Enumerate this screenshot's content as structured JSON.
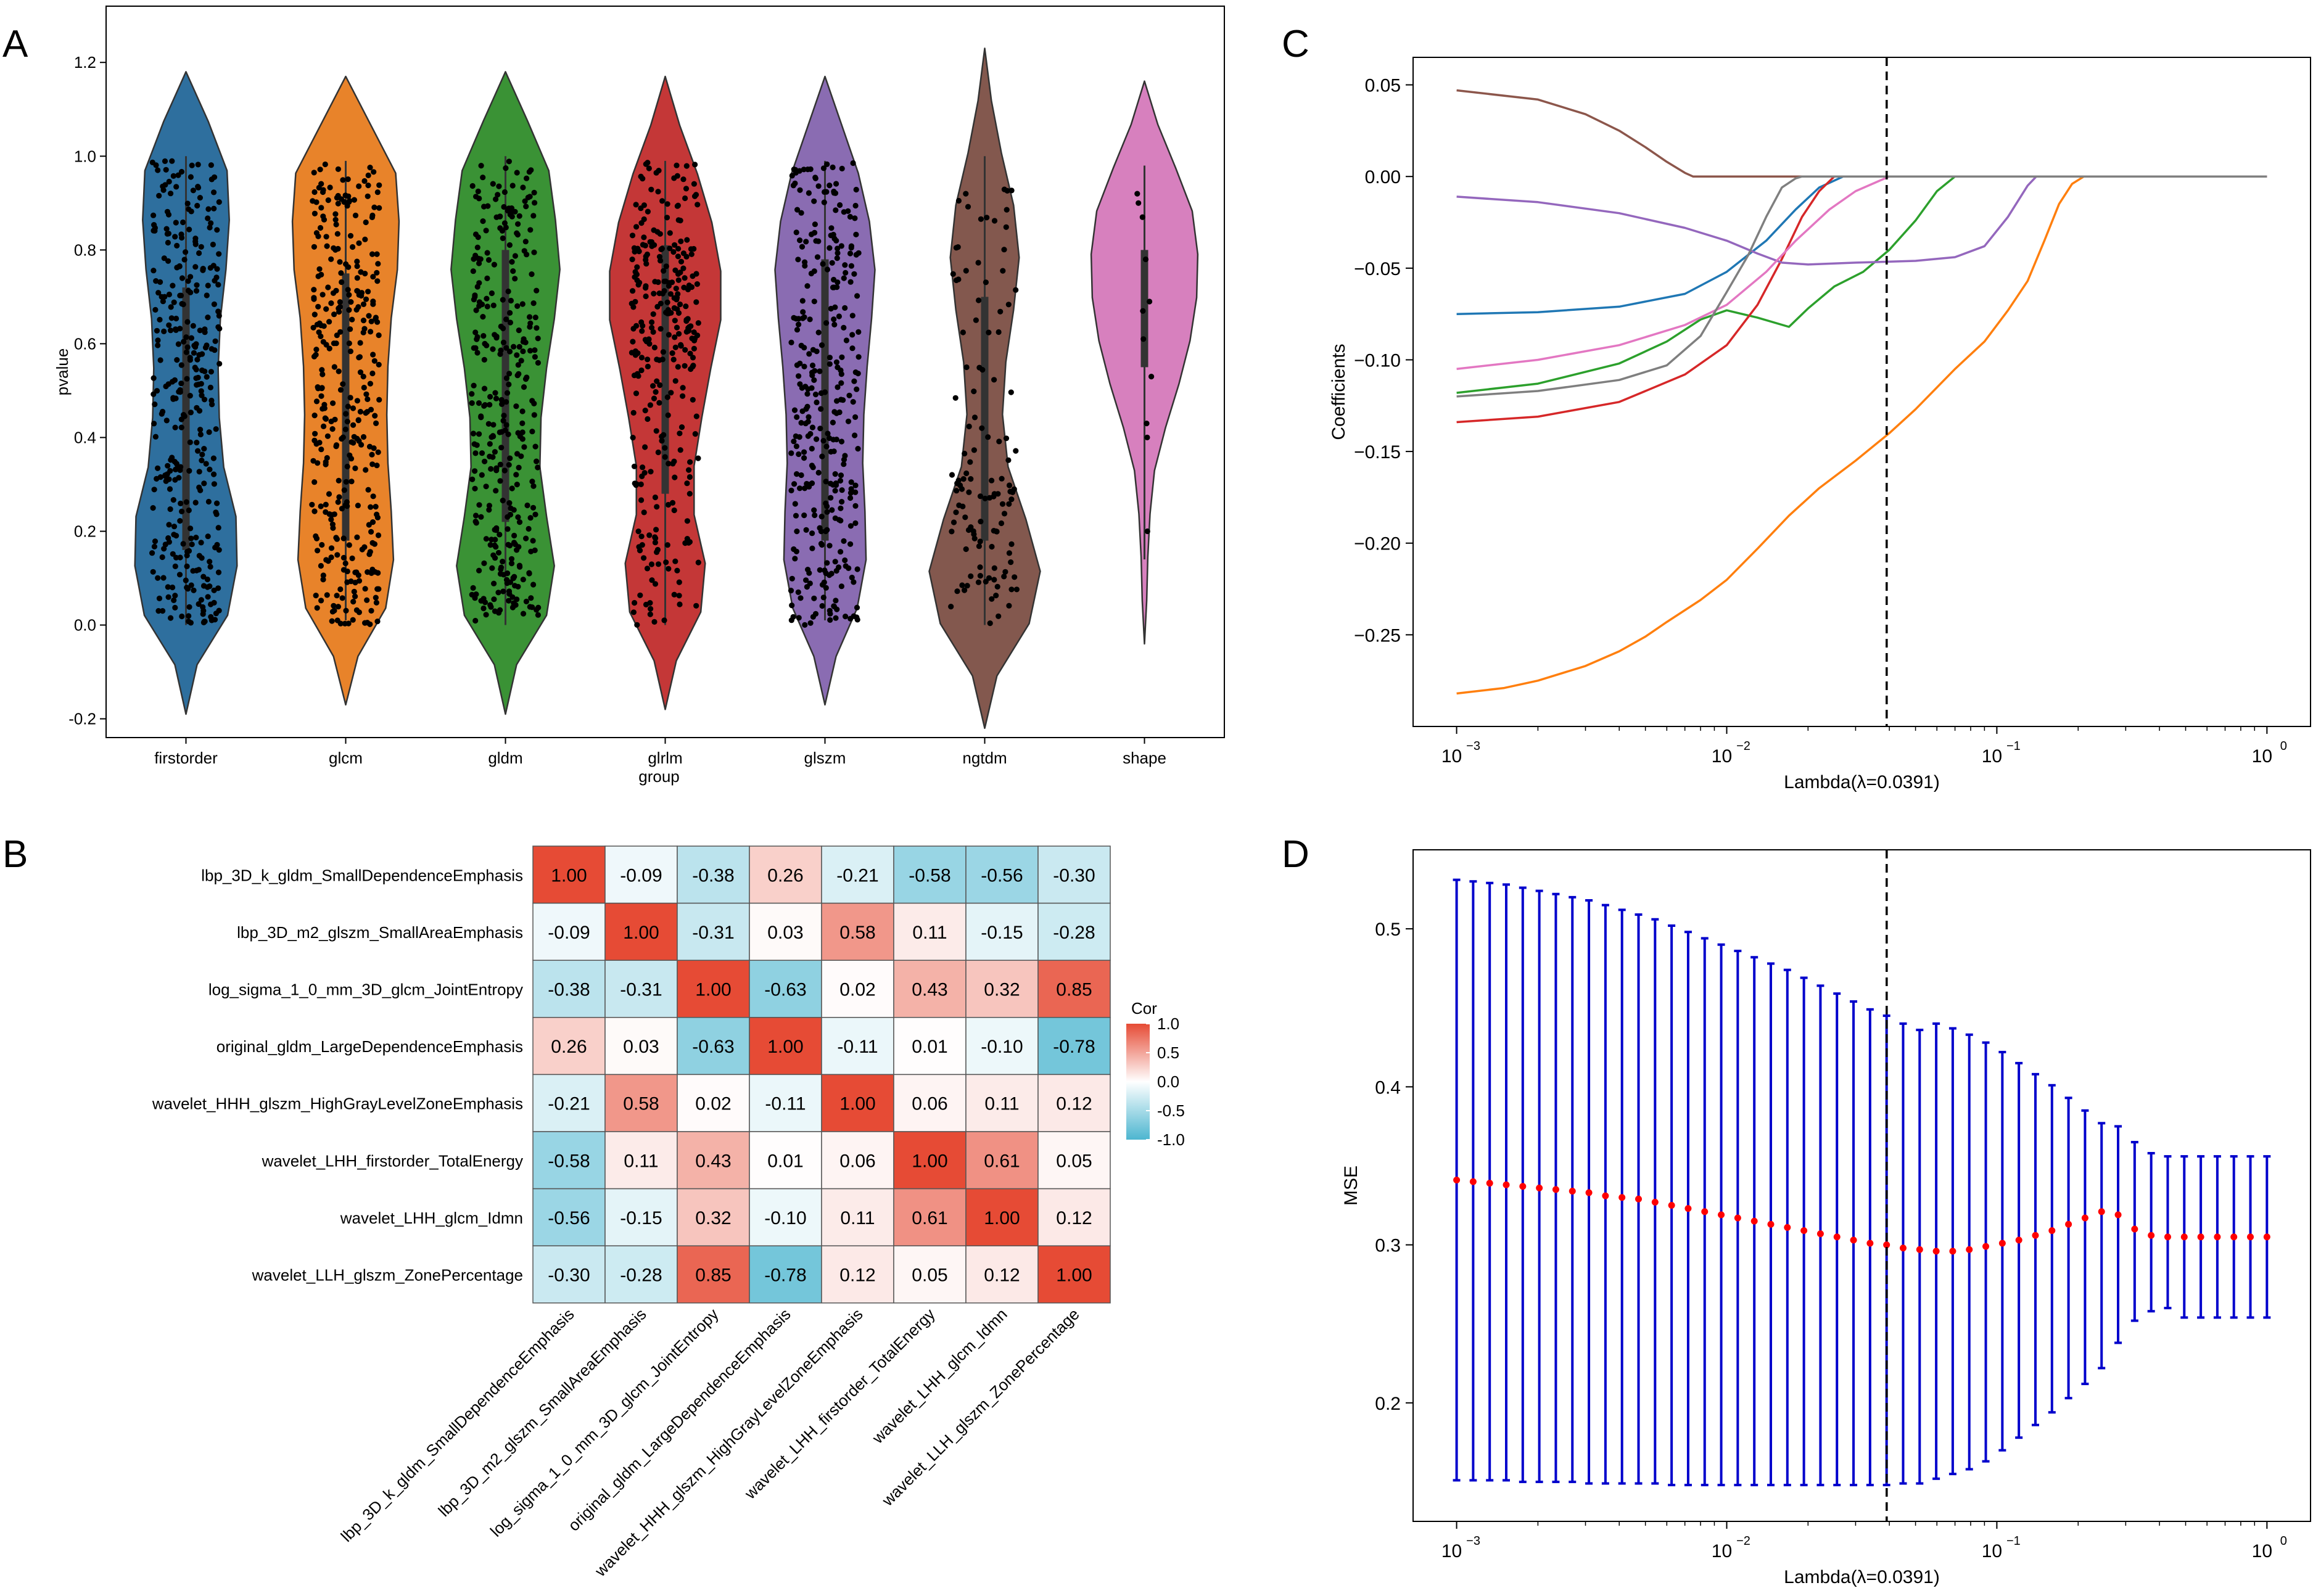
{
  "figure": {
    "panel_labels": [
      "A",
      "B",
      "C",
      "D"
    ]
  },
  "chart_data": [
    {
      "id": "A",
      "type": "violin",
      "xlabel": "group",
      "ylabel": "pvalue",
      "ylim": [
        -0.24,
        1.32
      ],
      "yticks": [
        -0.2,
        0.0,
        0.2,
        0.4,
        0.6,
        0.8,
        1.0,
        1.2
      ],
      "ytick_labels": [
        "-0.2",
        "0.0",
        "0.2",
        "0.4",
        "0.6",
        "0.8",
        "1.0",
        "1.2"
      ],
      "categories": [
        "firstorder",
        "glcm",
        "gldm",
        "glrlm",
        "glszm",
        "ngtdm",
        "shape"
      ],
      "colors": [
        "#2e6f9e",
        "#e8832a",
        "#3a9235",
        "#c43737",
        "#8a6cb2",
        "#83584e",
        "#d780be"
      ],
      "range": [
        [
          -0.19,
          1.18
        ],
        [
          -0.17,
          1.17
        ],
        [
          -0.19,
          1.18
        ],
        [
          -0.18,
          1.17
        ],
        [
          -0.17,
          1.17
        ],
        [
          -0.22,
          1.23
        ],
        [
          -0.04,
          1.16
        ]
      ],
      "quartiles": [
        [
          0.16,
          0.72
        ],
        [
          0.18,
          0.75
        ],
        [
          0.22,
          0.8
        ],
        [
          0.28,
          0.81
        ],
        [
          0.18,
          0.78
        ],
        [
          0.18,
          0.7
        ],
        [
          0.55,
          0.8
        ]
      ],
      "density_shape": [
        [
          0.0,
          0.2,
          0.75,
          0.92,
          0.9,
          0.68,
          0.6,
          0.58,
          0.62,
          0.72,
          0.78,
          0.74,
          0.4,
          0.0
        ],
        [
          0.0,
          0.22,
          0.72,
          0.86,
          0.82,
          0.76,
          0.74,
          0.76,
          0.82,
          0.93,
          0.96,
          0.9,
          0.45,
          0.0
        ],
        [
          0.0,
          0.2,
          0.74,
          0.88,
          0.74,
          0.62,
          0.64,
          0.74,
          0.88,
          0.98,
          0.9,
          0.78,
          0.4,
          0.0
        ],
        [
          0.0,
          0.2,
          0.64,
          0.72,
          0.52,
          0.52,
          0.66,
          0.82,
          1.0,
          1.0,
          0.84,
          0.58,
          0.26,
          0.0
        ],
        [
          0.0,
          0.2,
          0.58,
          0.74,
          0.72,
          0.68,
          0.7,
          0.76,
          0.84,
          0.9,
          0.8,
          0.6,
          0.3,
          0.0
        ],
        [
          0.0,
          0.22,
          0.8,
          1.0,
          0.74,
          0.42,
          0.32,
          0.38,
          0.52,
          0.62,
          0.52,
          0.3,
          0.12,
          0.0
        ],
        [
          0.0,
          0.04,
          0.06,
          0.1,
          0.18,
          0.38,
          0.62,
          0.82,
          0.94,
          0.96,
          0.86,
          0.56,
          0.24,
          0.0
        ]
      ],
      "points_n": [
        340,
        340,
        330,
        300,
        320,
        120,
        11
      ]
    },
    {
      "id": "B",
      "type": "heatmap",
      "rows": [
        "lbp_3D_k_gldm_SmallDependenceEmphasis",
        "lbp_3D_m2_glszm_SmallAreaEmphasis",
        "log_sigma_1_0_mm_3D_glcm_JointEntropy",
        "original_gldm_LargeDependenceEmphasis",
        "wavelet_HHH_glszm_HighGrayLevelZoneEmphasis",
        "wavelet_LHH_firstorder_TotalEnergy",
        "wavelet_LHH_glcm_Idmn",
        "wavelet_LLH_glszm_ZonePercentage"
      ],
      "values": [
        [
          1.0,
          -0.09,
          -0.38,
          0.26,
          -0.21,
          -0.58,
          -0.56,
          -0.3
        ],
        [
          -0.09,
          1.0,
          -0.31,
          0.03,
          0.58,
          0.11,
          -0.15,
          -0.28
        ],
        [
          -0.38,
          -0.31,
          1.0,
          -0.63,
          0.02,
          0.43,
          0.32,
          0.85
        ],
        [
          0.26,
          0.03,
          -0.63,
          1.0,
          -0.11,
          0.01,
          -0.1,
          -0.78
        ],
        [
          -0.21,
          0.58,
          0.02,
          -0.11,
          1.0,
          0.06,
          0.11,
          0.12
        ],
        [
          -0.58,
          0.11,
          0.43,
          0.01,
          0.06,
          1.0,
          0.61,
          0.05
        ],
        [
          -0.56,
          -0.15,
          0.32,
          -0.1,
          0.11,
          0.61,
          1.0,
          0.12
        ],
        [
          -0.3,
          -0.28,
          0.85,
          -0.78,
          0.12,
          0.05,
          0.12,
          1.0
        ]
      ],
      "value_labels": [
        [
          "1.00",
          "-0.09",
          "-0.38",
          "0.26",
          "-0.21",
          "-0.58",
          "-0.56",
          "-0.30"
        ],
        [
          "-0.09",
          "1.00",
          "-0.31",
          "0.03",
          "0.58",
          "0.11",
          "-0.15",
          "-0.28"
        ],
        [
          "-0.38",
          "-0.31",
          "1.00",
          "-0.63",
          "0.02",
          "0.43",
          "0.32",
          "0.85"
        ],
        [
          "0.26",
          "0.03",
          "-0.63",
          "1.00",
          "-0.11",
          "0.01",
          "-0.10",
          "-0.78"
        ],
        [
          "-0.21",
          "0.58",
          "0.02",
          "-0.11",
          "1.00",
          "0.06",
          "0.11",
          "0.12"
        ],
        [
          "-0.58",
          "0.11",
          "0.43",
          "0.01",
          "0.06",
          "1.00",
          "0.61",
          "0.05"
        ],
        [
          "-0.56",
          "-0.15",
          "0.32",
          "-0.10",
          "0.11",
          "0.61",
          "1.00",
          "0.12"
        ],
        [
          "-0.30",
          "-0.28",
          "0.85",
          "-0.78",
          "0.12",
          "0.05",
          "0.12",
          "1.00"
        ]
      ],
      "legend_title": "Cor",
      "legend_ticks": [
        1.0,
        0.5,
        0.0,
        -0.5,
        -1.0
      ],
      "legend_tick_labels": [
        "1.0",
        "0.5",
        "0.0",
        "-0.5",
        "-1.0"
      ],
      "colors": {
        "positive": "#e64b35",
        "negative": "#4db6d0",
        "neutral": "#ffffff"
      }
    },
    {
      "id": "C",
      "type": "line",
      "xscale": "log",
      "xlim": [
        0.00069,
        1.45
      ],
      "ylim": [
        -0.3,
        0.065
      ],
      "xlabel": "Lambda(λ=0.0391)",
      "ylabel": "Coefficients",
      "xtick_values": [
        0.001,
        0.01,
        0.1,
        1
      ],
      "xticks": [
        "10",
        "10",
        "10",
        "10"
      ],
      "xtick_exponents": [
        "−3",
        "−2",
        "−1",
        "0"
      ],
      "yticks": [
        0.05,
        0.0,
        -0.05,
        -0.1,
        -0.15,
        -0.2,
        -0.25
      ],
      "ytick_labels": [
        "0.05",
        "0.00",
        "−0.05",
        "−0.10",
        "−0.15",
        "−0.20",
        "−0.25"
      ],
      "vline": 0.0391,
      "series": [
        {
          "name": "s1",
          "color": "#1f77b4",
          "x": [
            0.001,
            0.002,
            0.004,
            0.007,
            0.01,
            0.014,
            0.018,
            0.022,
            0.027,
            1.0
          ],
          "y": [
            -0.075,
            -0.074,
            -0.071,
            -0.064,
            -0.052,
            -0.035,
            -0.018,
            -0.006,
            0.0,
            0.0
          ]
        },
        {
          "name": "s2",
          "color": "#ff7f0e",
          "x": [
            0.001,
            0.0015,
            0.002,
            0.003,
            0.004,
            0.005,
            0.006,
            0.008,
            0.01,
            0.013,
            0.017,
            0.022,
            0.03,
            0.04,
            0.05,
            0.07,
            0.09,
            0.11,
            0.13,
            0.15,
            0.17,
            0.19,
            0.21,
            1.0
          ],
          "y": [
            -0.282,
            -0.279,
            -0.275,
            -0.267,
            -0.259,
            -0.251,
            -0.243,
            -0.231,
            -0.22,
            -0.203,
            -0.185,
            -0.17,
            -0.155,
            -0.14,
            -0.127,
            -0.105,
            -0.09,
            -0.073,
            -0.057,
            -0.035,
            -0.015,
            -0.004,
            0.0,
            0.0
          ]
        },
        {
          "name": "s3",
          "color": "#2ca02c",
          "x": [
            0.001,
            0.002,
            0.004,
            0.006,
            0.008,
            0.01,
            0.013,
            0.017,
            0.02,
            0.025,
            0.032,
            0.04,
            0.05,
            0.06,
            0.07,
            1.0
          ],
          "y": [
            -0.118,
            -0.113,
            -0.102,
            -0.09,
            -0.078,
            -0.073,
            -0.077,
            -0.082,
            -0.072,
            -0.06,
            -0.052,
            -0.04,
            -0.024,
            -0.008,
            0.0,
            0.0
          ]
        },
        {
          "name": "s4",
          "color": "#d62728",
          "x": [
            0.001,
            0.002,
            0.004,
            0.007,
            0.01,
            0.013,
            0.016,
            0.019,
            0.022,
            0.025,
            1.0
          ],
          "y": [
            -0.134,
            -0.131,
            -0.123,
            -0.108,
            -0.092,
            -0.07,
            -0.045,
            -0.022,
            -0.008,
            0.0,
            0.0
          ]
        },
        {
          "name": "s5",
          "color": "#9467bd",
          "x": [
            0.001,
            0.002,
            0.004,
            0.007,
            0.01,
            0.013,
            0.016,
            0.02,
            0.03,
            0.05,
            0.07,
            0.09,
            0.11,
            0.13,
            0.14,
            1.0
          ],
          "y": [
            -0.011,
            -0.014,
            -0.02,
            -0.028,
            -0.035,
            -0.042,
            -0.047,
            -0.048,
            -0.047,
            -0.046,
            -0.044,
            -0.038,
            -0.022,
            -0.005,
            0.0,
            0.0
          ]
        },
        {
          "name": "s6",
          "color": "#8c564b",
          "x": [
            0.001,
            0.002,
            0.003,
            0.004,
            0.005,
            0.006,
            0.007,
            0.0075,
            1.0
          ],
          "y": [
            0.047,
            0.042,
            0.034,
            0.025,
            0.016,
            0.008,
            0.002,
            0.0,
            0.0
          ]
        },
        {
          "name": "s7",
          "color": "#e377c2",
          "x": [
            0.001,
            0.002,
            0.004,
            0.007,
            0.01,
            0.014,
            0.018,
            0.024,
            0.03,
            0.04,
            1.0
          ],
          "y": [
            -0.105,
            -0.1,
            -0.092,
            -0.081,
            -0.07,
            -0.052,
            -0.035,
            -0.018,
            -0.008,
            0.0,
            0.0
          ]
        },
        {
          "name": "s8",
          "color": "#7f7f7f",
          "x": [
            0.001,
            0.002,
            0.004,
            0.006,
            0.008,
            0.01,
            0.012,
            0.014,
            0.016,
            0.018,
            0.019,
            1.0
          ],
          "y": [
            -0.12,
            -0.117,
            -0.111,
            -0.103,
            -0.087,
            -0.063,
            -0.043,
            -0.022,
            -0.006,
            -0.001,
            0.0,
            0.0
          ]
        }
      ]
    },
    {
      "id": "D",
      "type": "errorbar",
      "xscale": "log",
      "xlim": [
        0.00069,
        1.45
      ],
      "ylim": [
        0.125,
        0.55
      ],
      "xlabel": "Lambda(λ=0.0391)",
      "ylabel": "MSE",
      "xtick_values": [
        0.001,
        0.01,
        0.1,
        1
      ],
      "xticks": [
        "10",
        "10",
        "10",
        "10"
      ],
      "xtick_exponents": [
        "−3",
        "−2",
        "−1",
        "0"
      ],
      "yticks": [
        0.2,
        0.3,
        0.4,
        0.5
      ],
      "ytick_labels": [
        "0.2",
        "0.3",
        "0.4",
        "0.5"
      ],
      "vline": 0.0391,
      "n_points": 50,
      "x_range": [
        0.001,
        1.0
      ],
      "mean": [
        0.341,
        0.34,
        0.339,
        0.338,
        0.337,
        0.336,
        0.335,
        0.334,
        0.333,
        0.331,
        0.33,
        0.329,
        0.327,
        0.325,
        0.323,
        0.321,
        0.319,
        0.317,
        0.315,
        0.313,
        0.311,
        0.309,
        0.307,
        0.305,
        0.303,
        0.301,
        0.3,
        0.298,
        0.297,
        0.296,
        0.296,
        0.297,
        0.299,
        0.301,
        0.303,
        0.306,
        0.309,
        0.313,
        0.317,
        0.321,
        0.319,
        0.31,
        0.306,
        0.305,
        0.305,
        0.305,
        0.305,
        0.305,
        0.305,
        0.305
      ],
      "upper": [
        0.531,
        0.53,
        0.529,
        0.528,
        0.526,
        0.524,
        0.522,
        0.52,
        0.518,
        0.515,
        0.512,
        0.509,
        0.506,
        0.502,
        0.498,
        0.494,
        0.49,
        0.486,
        0.482,
        0.478,
        0.474,
        0.469,
        0.464,
        0.459,
        0.454,
        0.449,
        0.445,
        0.44,
        0.436,
        0.44,
        0.437,
        0.433,
        0.428,
        0.422,
        0.415,
        0.408,
        0.401,
        0.393,
        0.385,
        0.377,
        0.375,
        0.365,
        0.358,
        0.356,
        0.356,
        0.356,
        0.356,
        0.356,
        0.356,
        0.356
      ],
      "lower": [
        0.151,
        0.151,
        0.151,
        0.151,
        0.15,
        0.15,
        0.15,
        0.15,
        0.149,
        0.149,
        0.149,
        0.149,
        0.149,
        0.148,
        0.148,
        0.148,
        0.148,
        0.148,
        0.148,
        0.148,
        0.148,
        0.148,
        0.148,
        0.148,
        0.148,
        0.148,
        0.148,
        0.149,
        0.149,
        0.152,
        0.155,
        0.158,
        0.163,
        0.17,
        0.178,
        0.186,
        0.194,
        0.203,
        0.212,
        0.222,
        0.238,
        0.252,
        0.258,
        0.26,
        0.254,
        0.254,
        0.254,
        0.254,
        0.254,
        0.254
      ],
      "mean_color": "#ff0000",
      "bar_color": "#0000cc"
    }
  ]
}
